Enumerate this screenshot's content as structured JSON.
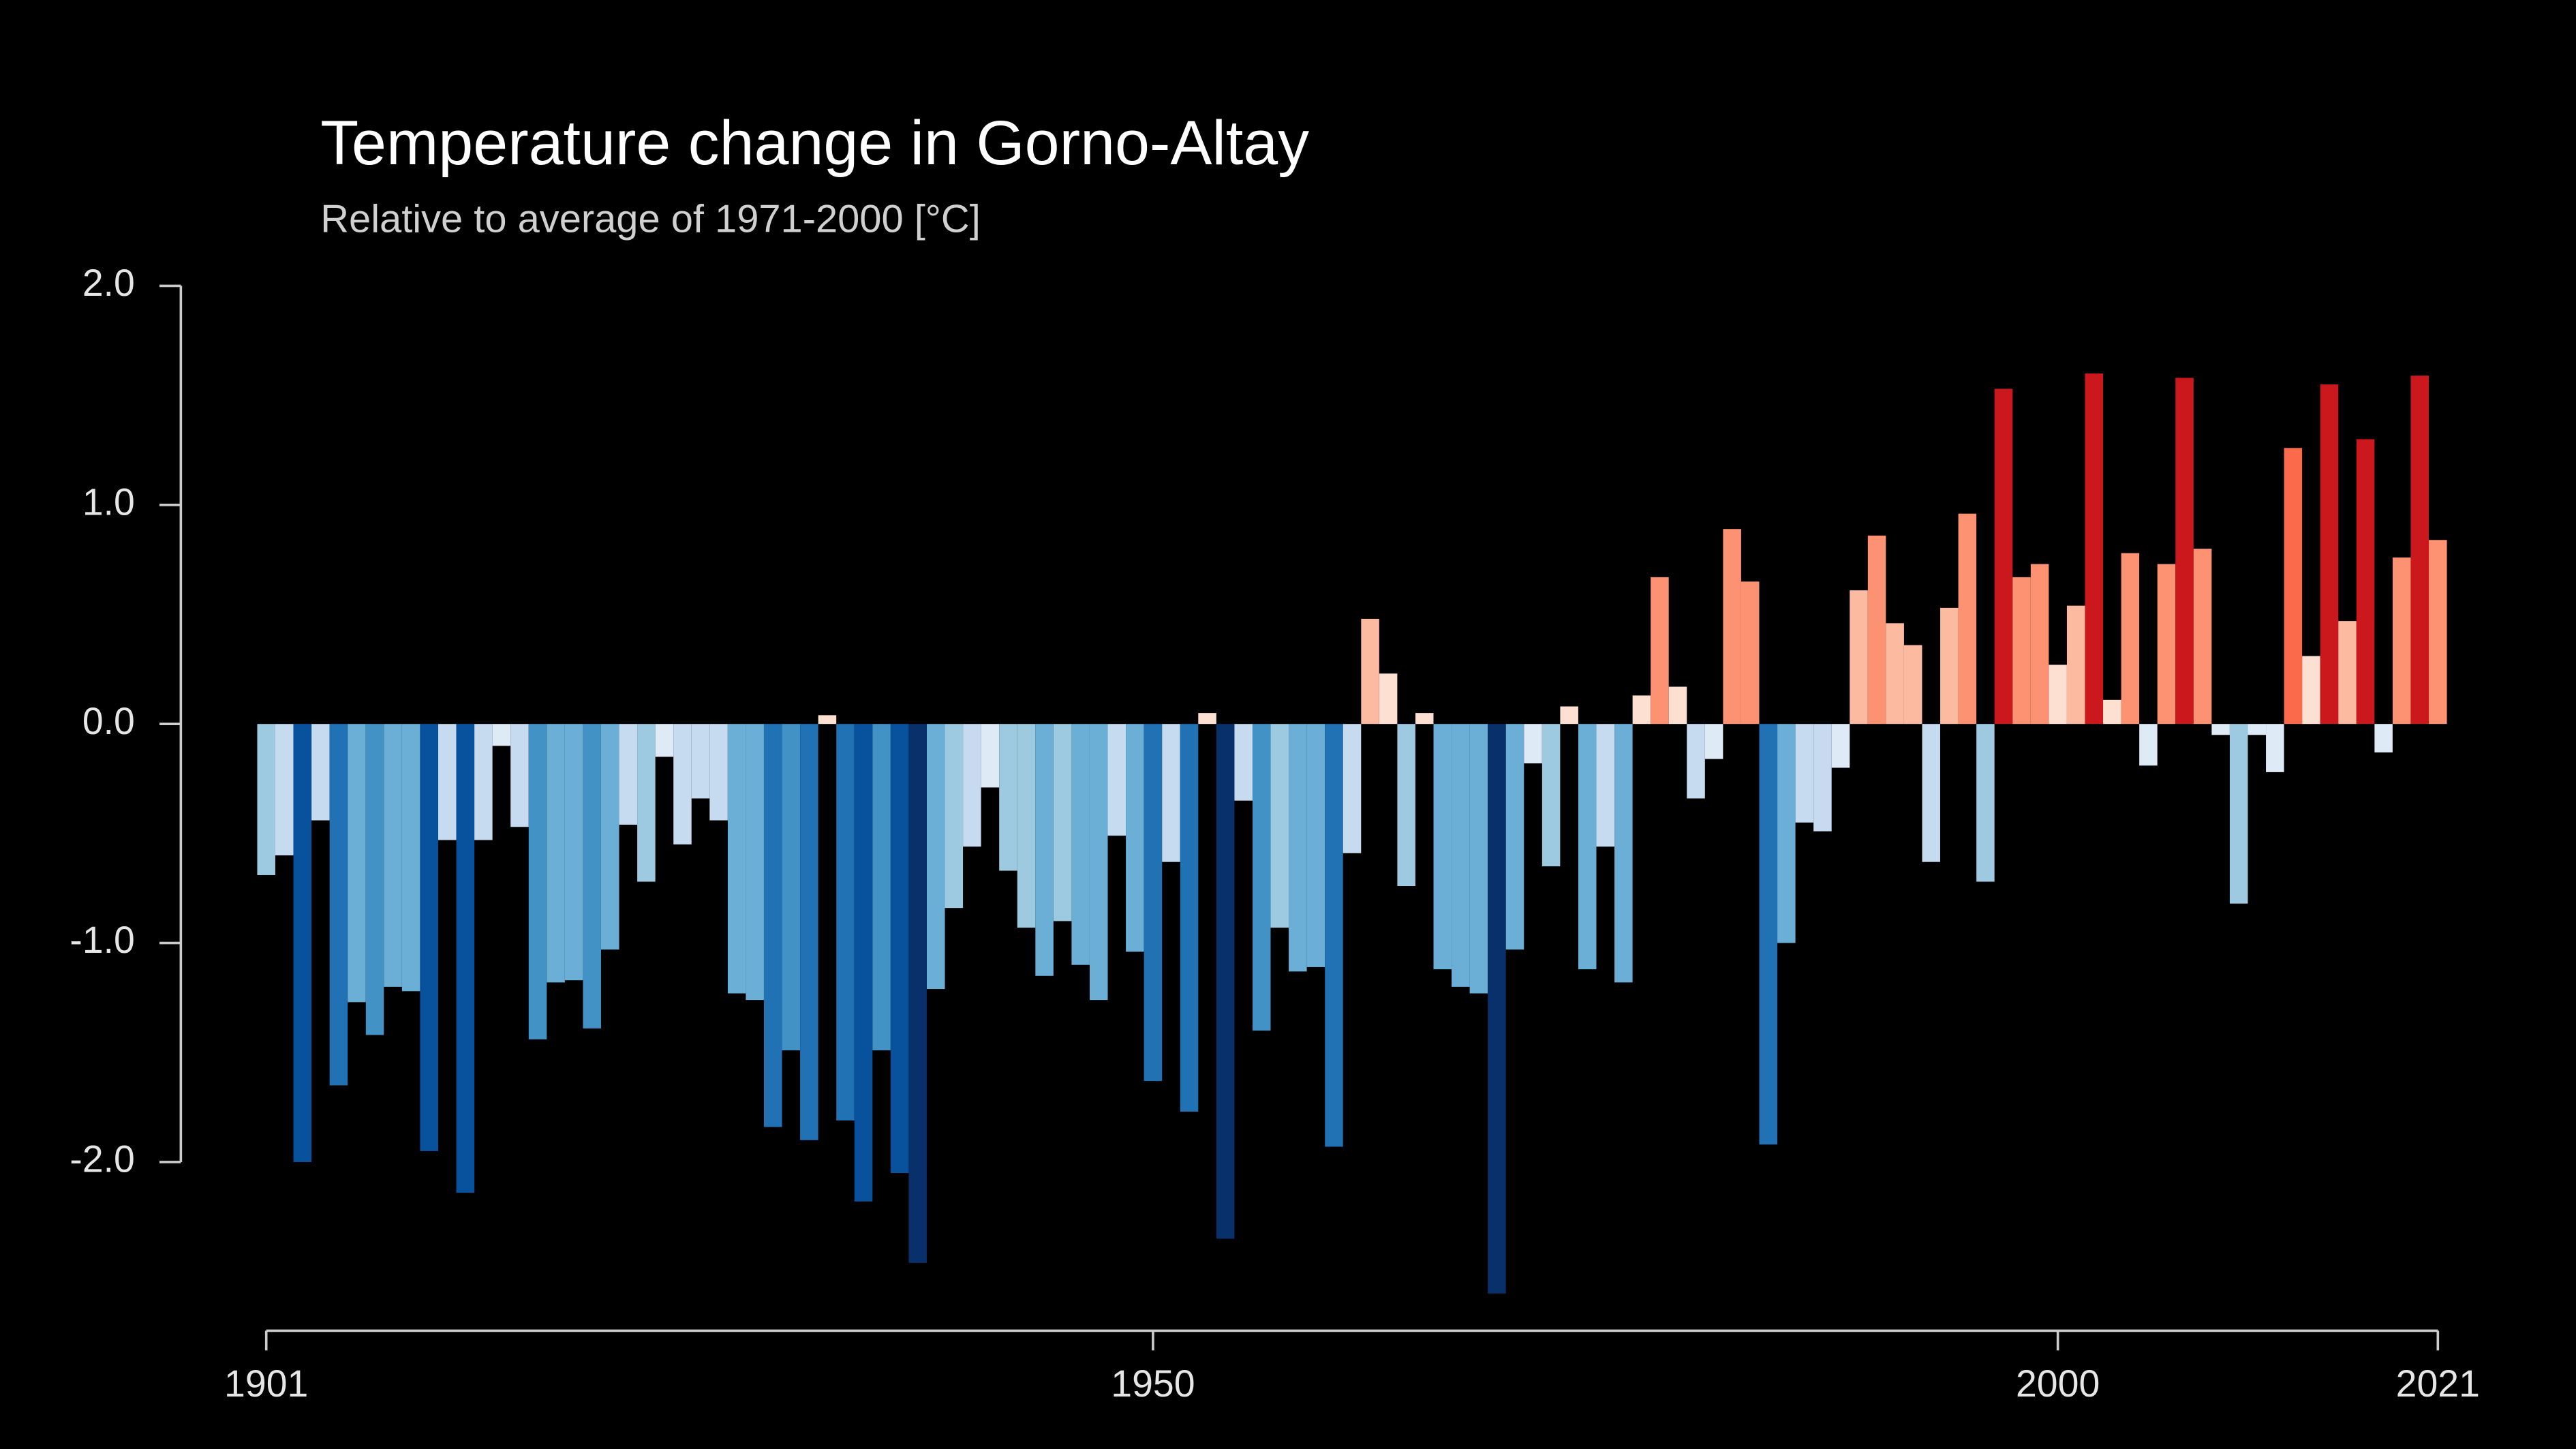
{
  "chart_data": {
    "type": "bar",
    "title": "Temperature change in Gorno-Altay",
    "subtitle": "Relative to average of 1971-2000  [°C]",
    "x": [
      1901,
      1902,
      1903,
      1904,
      1905,
      1906,
      1907,
      1908,
      1909,
      1910,
      1911,
      1912,
      1913,
      1914,
      1915,
      1916,
      1917,
      1918,
      1919,
      1920,
      1921,
      1922,
      1923,
      1924,
      1925,
      1926,
      1927,
      1928,
      1929,
      1930,
      1931,
      1932,
      1933,
      1934,
      1935,
      1936,
      1937,
      1938,
      1939,
      1940,
      1941,
      1942,
      1943,
      1944,
      1945,
      1946,
      1947,
      1948,
      1949,
      1950,
      1951,
      1952,
      1953,
      1954,
      1955,
      1956,
      1957,
      1958,
      1959,
      1960,
      1961,
      1962,
      1963,
      1964,
      1965,
      1966,
      1967,
      1968,
      1969,
      1970,
      1971,
      1972,
      1973,
      1974,
      1975,
      1976,
      1977,
      1978,
      1979,
      1980,
      1981,
      1982,
      1983,
      1984,
      1985,
      1986,
      1987,
      1988,
      1989,
      1990,
      1991,
      1992,
      1993,
      1994,
      1995,
      1996,
      1997,
      1998,
      1999,
      2000,
      2001,
      2002,
      2003,
      2004,
      2005,
      2006,
      2007,
      2008,
      2009,
      2010,
      2011,
      2012,
      2013,
      2014,
      2015,
      2016,
      2017,
      2018,
      2019,
      2020,
      2021
    ],
    "values": [
      -0.69,
      -0.6,
      -2.0,
      -0.44,
      -1.65,
      -1.27,
      -1.42,
      -1.2,
      -1.22,
      -1.95,
      -0.53,
      -2.14,
      -0.53,
      -0.1,
      -0.47,
      -1.44,
      -1.18,
      -1.17,
      -1.39,
      -1.03,
      -0.46,
      -0.72,
      -0.15,
      -0.55,
      -0.34,
      -0.44,
      -1.23,
      -1.26,
      -1.84,
      -1.49,
      -1.9,
      0.04,
      -1.81,
      -2.18,
      -1.49,
      -2.05,
      -2.46,
      -1.21,
      -0.84,
      -0.56,
      -0.29,
      -0.67,
      -0.93,
      -1.15,
      -0.9,
      -1.1,
      -1.26,
      -0.51,
      -1.04,
      -1.63,
      -0.63,
      -1.77,
      0.05,
      -2.35,
      -0.35,
      -1.4,
      -0.93,
      -1.13,
      -1.11,
      -1.93,
      -0.59,
      0.48,
      0.23,
      -0.74,
      0.05,
      -1.12,
      -1.2,
      -1.23,
      -2.6,
      -1.03,
      -0.18,
      -0.65,
      0.08,
      -1.12,
      -0.56,
      -1.18,
      0.13,
      0.67,
      0.17,
      -0.34,
      -0.16,
      0.89,
      0.65,
      -1.92,
      -1.0,
      -0.45,
      -0.49,
      -0.2,
      0.61,
      0.86,
      0.46,
      0.36,
      -0.63,
      0.53,
      0.96,
      -0.72,
      1.53,
      0.67,
      0.73,
      0.27,
      0.54,
      1.6,
      0.11,
      0.78,
      -0.19,
      0.73,
      1.58,
      0.8,
      -0.05,
      -0.82,
      -0.05,
      -0.22,
      1.26,
      0.31,
      1.55,
      0.47,
      1.3,
      -0.13,
      0.76,
      1.59,
      0.84
    ],
    "palette_negative": [
      "#deebf7",
      "#c6dbef",
      "#9ecae1",
      "#6baed6",
      "#4292c6",
      "#2171b5",
      "#08519c",
      "#08306b"
    ],
    "palette_positive": [
      "#fee0d2",
      "#fcbba1",
      "#fc9272",
      "#fb6a4a",
      "#cb181d",
      "#a50f15",
      "#67000d",
      "#67000d"
    ],
    "xlim": [
      1901,
      2021
    ],
    "xticks": [
      1901,
      1950,
      2000,
      2021
    ],
    "ylim": [
      -2.77,
      2.0
    ],
    "yticks": [
      {
        "value": 2.0,
        "label": "2.0"
      },
      {
        "value": 1.0,
        "label": "1.0"
      },
      {
        "value": 0.0,
        "label": "0.0"
      },
      {
        "value": -1.0,
        "label": "-1.0"
      },
      {
        "value": -2.0,
        "label": "-2.0"
      }
    ],
    "grid": false
  }
}
